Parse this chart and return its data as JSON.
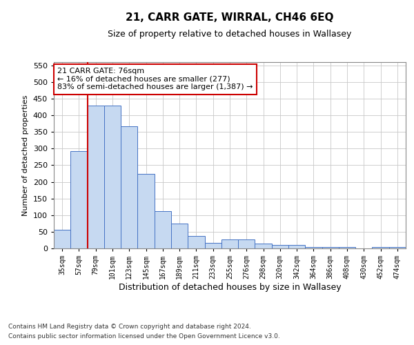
{
  "title1": "21, CARR GATE, WIRRAL, CH46 6EQ",
  "title2": "Size of property relative to detached houses in Wallasey",
  "xlabel": "Distribution of detached houses by size in Wallasey",
  "ylabel": "Number of detached properties",
  "categories": [
    "35sqm",
    "57sqm",
    "79sqm",
    "101sqm",
    "123sqm",
    "145sqm",
    "167sqm",
    "189sqm",
    "211sqm",
    "233sqm",
    "255sqm",
    "276sqm",
    "298sqm",
    "320sqm",
    "342sqm",
    "364sqm",
    "386sqm",
    "408sqm",
    "430sqm",
    "452sqm",
    "474sqm"
  ],
  "values": [
    55,
    293,
    430,
    430,
    368,
    225,
    113,
    75,
    38,
    17,
    27,
    27,
    15,
    10,
    10,
    5,
    5,
    5,
    0,
    5,
    5
  ],
  "bar_color": "#c6d9f1",
  "bar_edge_color": "#4472c4",
  "vline_x": 1.5,
  "vline_color": "#cc0000",
  "annotation_text": "21 CARR GATE: 76sqm\n← 16% of detached houses are smaller (277)\n83% of semi-detached houses are larger (1,387) →",
  "annotation_box_color": "#ffffff",
  "annotation_box_edge": "#cc0000",
  "ylim": [
    0,
    560
  ],
  "yticks": [
    0,
    50,
    100,
    150,
    200,
    250,
    300,
    350,
    400,
    450,
    500,
    550
  ],
  "footer1": "Contains HM Land Registry data © Crown copyright and database right 2024.",
  "footer2": "Contains public sector information licensed under the Open Government Licence v3.0.",
  "background_color": "#ffffff",
  "grid_color": "#c8c8c8",
  "title1_fontsize": 11,
  "title2_fontsize": 9,
  "ylabel_fontsize": 8,
  "xlabel_fontsize": 9,
  "tick_fontsize": 8,
  "xtick_fontsize": 7,
  "annot_fontsize": 8,
  "footer_fontsize": 6.5
}
